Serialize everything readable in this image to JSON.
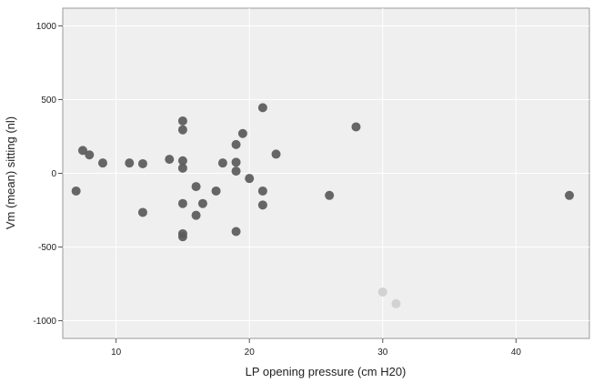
{
  "chart_data": {
    "type": "scatter",
    "xlabel": "LP opening pressure (cm H20)",
    "ylabel": "Vm (mean) sitting (nl)",
    "xlim": [
      6,
      45.5
    ],
    "ylim": [
      -1120,
      1120
    ],
    "xticks": [
      10,
      20,
      30,
      40
    ],
    "yticks": [
      -1000,
      -500,
      0,
      500,
      1000
    ],
    "xtick_labels": [
      "10",
      "20",
      "30",
      "40"
    ],
    "ytick_labels": [
      "-1000",
      "-500",
      "0",
      "500",
      "1000"
    ],
    "plot_background": "#efefef",
    "point_color": "#5a5a5a",
    "faded_point_color": "#d2d2d2",
    "points": [
      {
        "x": 7,
        "y": -120
      },
      {
        "x": 7.5,
        "y": 155
      },
      {
        "x": 8,
        "y": 125
      },
      {
        "x": 9,
        "y": 70
      },
      {
        "x": 11,
        "y": 70
      },
      {
        "x": 12,
        "y": 65
      },
      {
        "x": 12,
        "y": -265
      },
      {
        "x": 14,
        "y": 95
      },
      {
        "x": 15,
        "y": 355
      },
      {
        "x": 15,
        "y": 295
      },
      {
        "x": 15,
        "y": 85
      },
      {
        "x": 15,
        "y": 35
      },
      {
        "x": 15,
        "y": -205
      },
      {
        "x": 15,
        "y": -410
      },
      {
        "x": 15,
        "y": -430
      },
      {
        "x": 16,
        "y": -90
      },
      {
        "x": 16,
        "y": -285
      },
      {
        "x": 16.5,
        "y": -205
      },
      {
        "x": 17.5,
        "y": -120
      },
      {
        "x": 18,
        "y": 70
      },
      {
        "x": 19,
        "y": 195
      },
      {
        "x": 19,
        "y": 75
      },
      {
        "x": 19,
        "y": 15
      },
      {
        "x": 19,
        "y": -395
      },
      {
        "x": 19.5,
        "y": 270
      },
      {
        "x": 20,
        "y": -35
      },
      {
        "x": 21,
        "y": 445
      },
      {
        "x": 21,
        "y": -120
      },
      {
        "x": 21,
        "y": -215
      },
      {
        "x": 22,
        "y": 130
      },
      {
        "x": 26,
        "y": -150
      },
      {
        "x": 28,
        "y": 315
      },
      {
        "x": 44,
        "y": -150
      },
      {
        "x": 30,
        "y": -805,
        "faded": true
      },
      {
        "x": 31,
        "y": -885,
        "faded": true
      }
    ]
  }
}
